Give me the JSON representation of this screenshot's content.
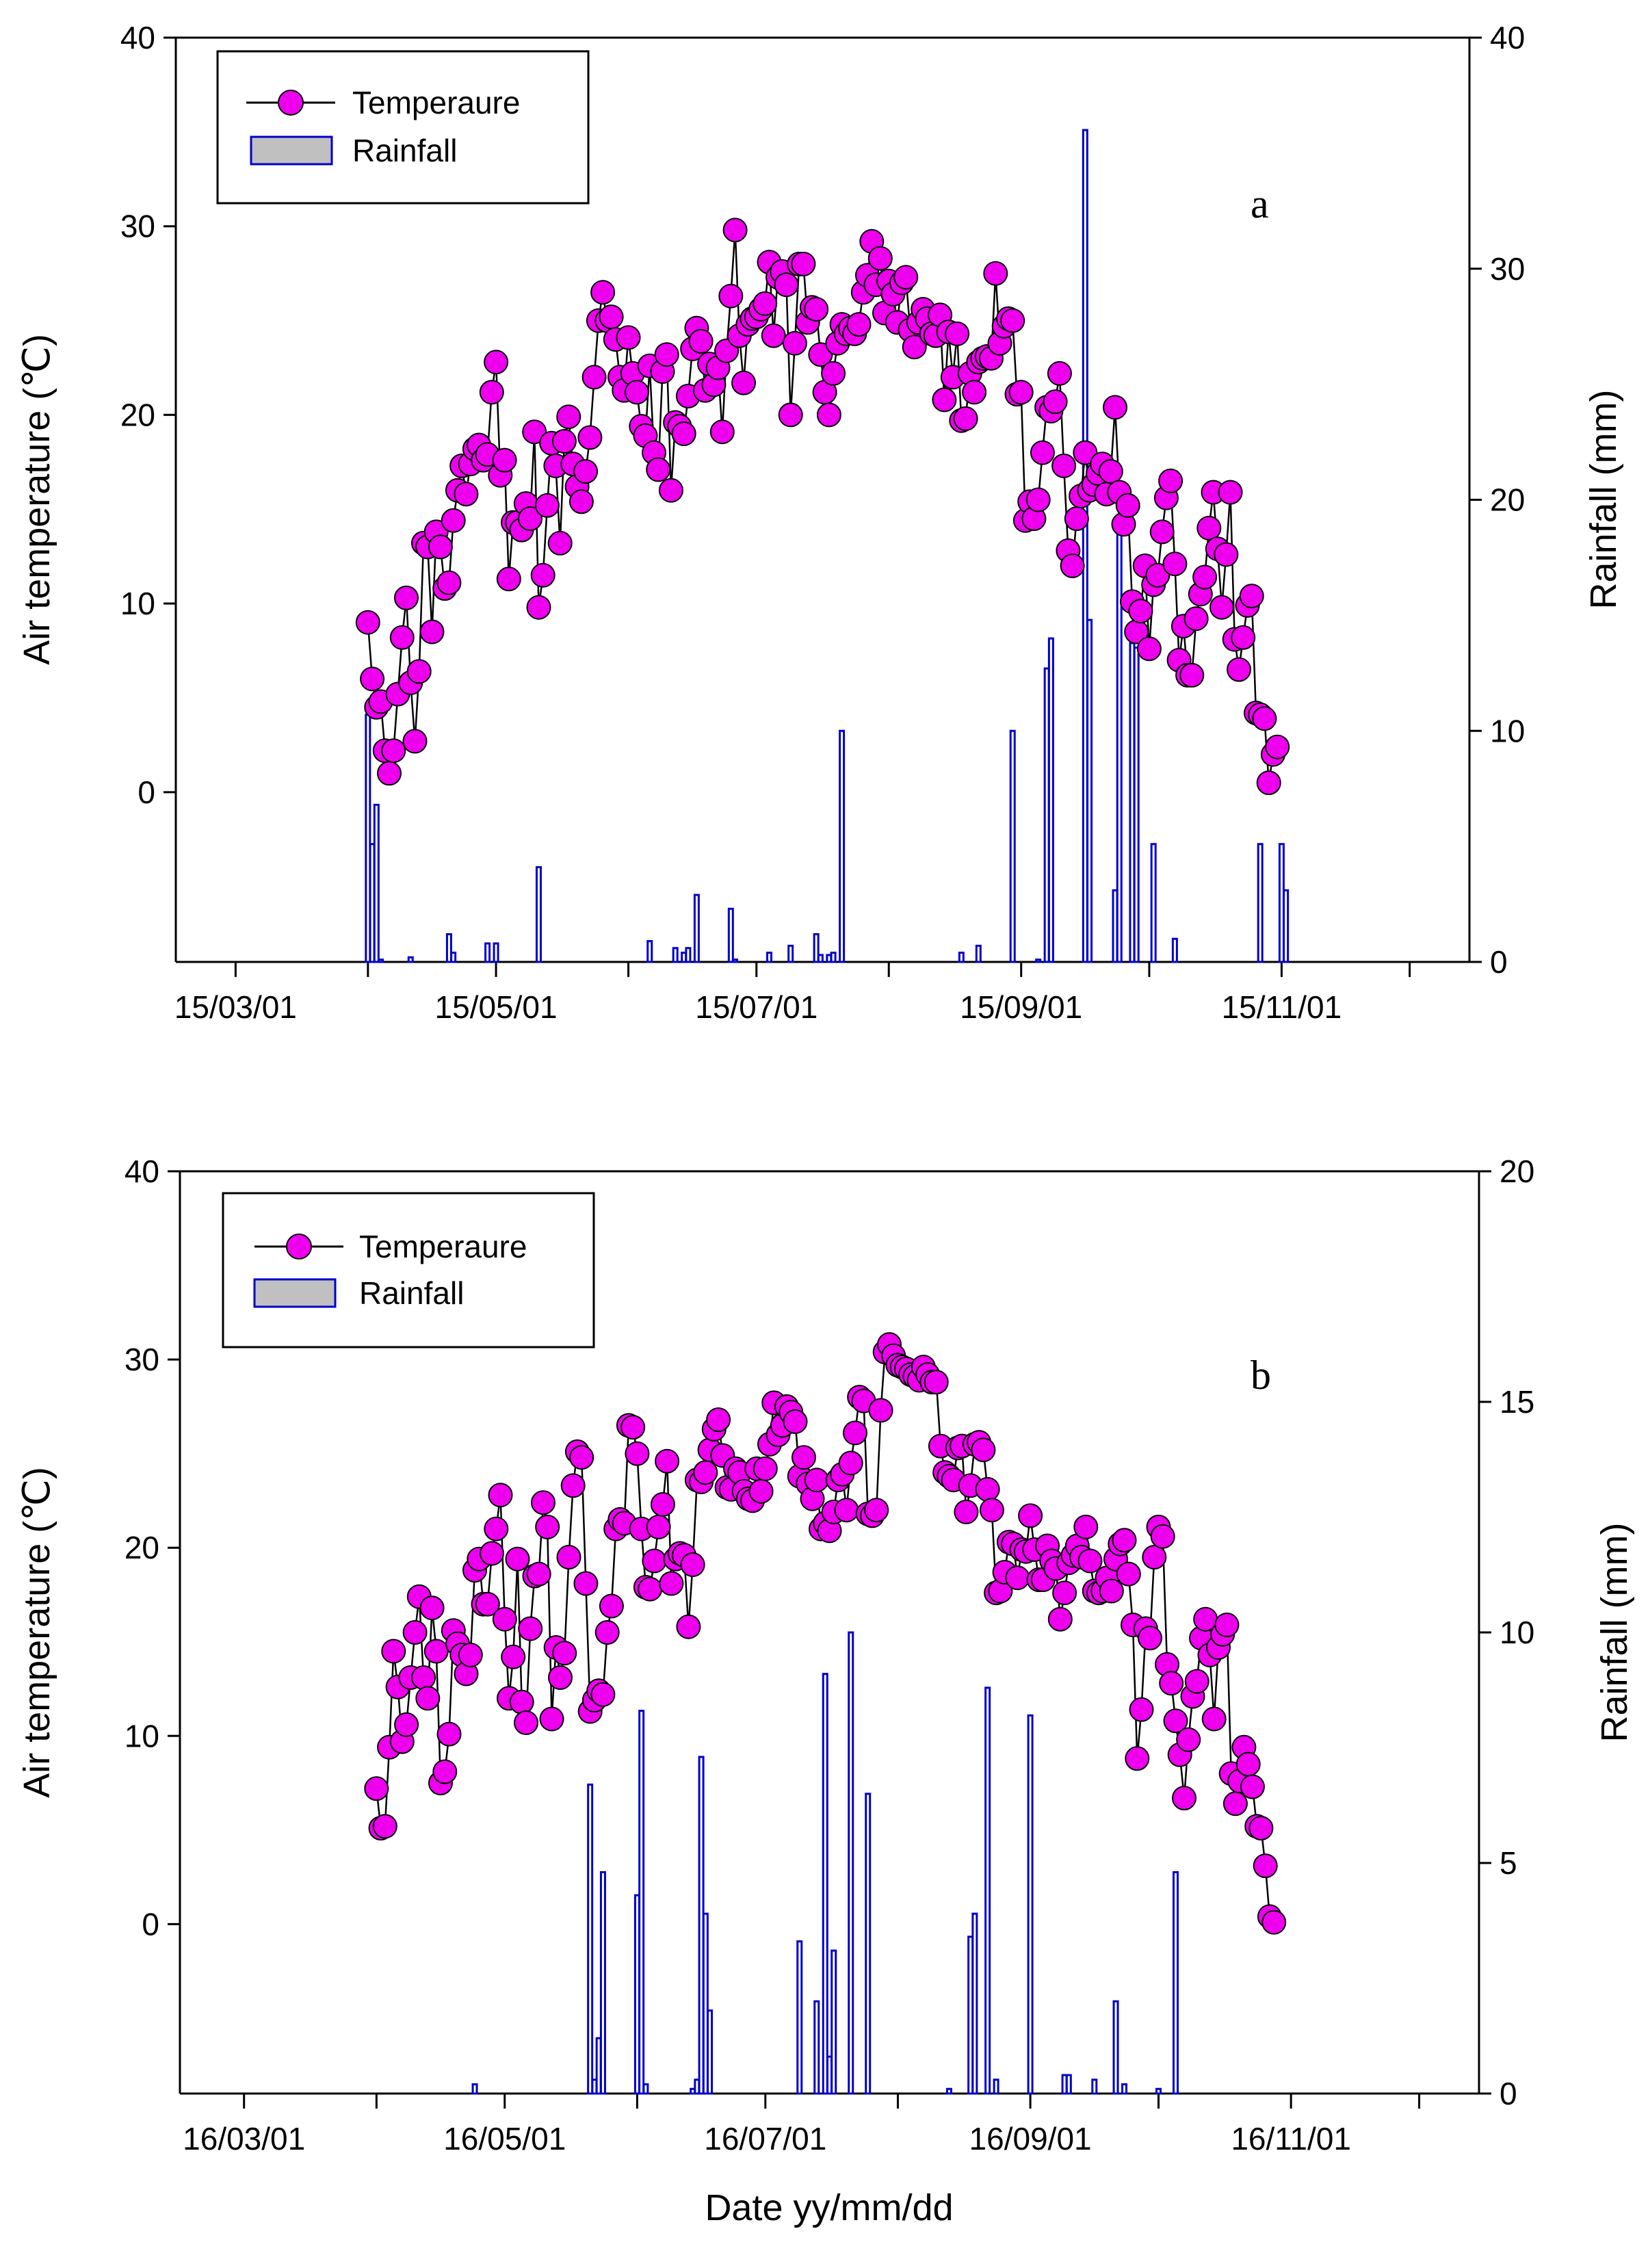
{
  "x_axis_title": "Date yy/mm/dd",
  "chart_data": [
    {
      "type": "line",
      "panel_label": "a",
      "year": 2015,
      "ylabel_left": "Air temperature (℃)",
      "ylabel_right": "Rainfall (mm)",
      "ylim_left": [
        -9,
        40
      ],
      "ylim_right": [
        0,
        40
      ],
      "yticks_left": [
        0,
        10,
        20,
        30,
        40
      ],
      "yticks_right": [
        0,
        10,
        20,
        30,
        40
      ],
      "xlim": [
        "15/02/15",
        "15/12/15"
      ],
      "xtick_labels": [
        "15/03/01",
        "15/05/01",
        "15/07/01",
        "15/09/01",
        "15/11/01"
      ],
      "legend": {
        "entries": [
          "Temperaure",
          "Rainfall"
        ],
        "placement": "top-left"
      },
      "series": [
        {
          "name": "Temperaure",
          "kind": "line-marker",
          "color": "#ee00ee",
          "start_date": "2015-04-01",
          "values": [
            9.0,
            6.0,
            4.5,
            4.8,
            2.2,
            1.0,
            2.2,
            5.2,
            8.2,
            10.3,
            5.8,
            2.7,
            6.4,
            13.2,
            13.0,
            8.5,
            13.8,
            13.0,
            10.8,
            11.1,
            14.4,
            16.0,
            17.3,
            15.8,
            17.4,
            18.2,
            18.4,
            17.6,
            17.9,
            21.2,
            22.8,
            16.8,
            17.6,
            11.3,
            14.3,
            14.3,
            13.9,
            15.3,
            14.5,
            19.1,
            9.8,
            11.5,
            15.2,
            18.5,
            17.3,
            13.2,
            18.6,
            19.9,
            17.4,
            16.2,
            15.4,
            17.0,
            18.8,
            22.0,
            25.0,
            26.5,
            25.0,
            25.2,
            24.0,
            22.0,
            21.3,
            24.1,
            22.2,
            21.2,
            19.4,
            18.9,
            22.6,
            18.0,
            17.1,
            22.3,
            23.2,
            16.0,
            19.6,
            19.4,
            19.0,
            21.0,
            23.5,
            24.6,
            23.9,
            21.3,
            22.7,
            21.6,
            22.5,
            19.1,
            23.4,
            26.3,
            29.8,
            24.2,
            21.7,
            24.8,
            25.1,
            25.2,
            25.6,
            25.9,
            28.1,
            24.2,
            27.3,
            27.6,
            26.9,
            20.0,
            23.8,
            28.0,
            28.0,
            24.9,
            25.7,
            25.6,
            23.2,
            21.2,
            20.0,
            22.2,
            23.8,
            24.8,
            24.3,
            24.6,
            24.3,
            24.8,
            26.5,
            27.4,
            29.2,
            26.9,
            28.3,
            25.4,
            27.1,
            26.4,
            24.9,
            27.0,
            27.3,
            24.5,
            23.6,
            24.9,
            25.6,
            25.1,
            24.3,
            24.2,
            25.3,
            20.8,
            24.4,
            22.0,
            24.3,
            19.7,
            19.8,
            22.2,
            21.2,
            22.8,
            23.0,
            23.1,
            23.0,
            27.5,
            23.8,
            24.7,
            25.1,
            25.0,
            21.1,
            21.2,
            14.4,
            15.4,
            14.5,
            15.5,
            18.0,
            20.4,
            20.2,
            20.7,
            22.2,
            17.3,
            12.8,
            12.0,
            14.5,
            15.7,
            18.0,
            16.0,
            16.3,
            16.9,
            17.4,
            15.8,
            17.0,
            20.4,
            15.9,
            14.2,
            15.2,
            10.1,
            8.5,
            9.6,
            12.0,
            7.6,
            11.0,
            11.5,
            13.8,
            15.6,
            16.5,
            12.1,
            7.0,
            8.8,
            6.2,
            6.2,
            9.2,
            10.5,
            11.4,
            14.0,
            15.9,
            12.9,
            9.8,
            12.6,
            15.9,
            8.1,
            6.5,
            8.2,
            9.9,
            10.4,
            4.2,
            4.1,
            3.9,
            0.5,
            2.0,
            2.4
          ]
        },
        {
          "name": "Rainfall",
          "kind": "bar",
          "color": "#0000cc",
          "points": [
            [
              "2015-04-01",
              10.7
            ],
            [
              "2015-04-02",
              5.1
            ],
            [
              "2015-04-03",
              6.8
            ],
            [
              "2015-04-04",
              0.1
            ],
            [
              "2015-04-11",
              0.2
            ],
            [
              "2015-04-20",
              1.2
            ],
            [
              "2015-04-21",
              0.4
            ],
            [
              "2015-04-29",
              0.8
            ],
            [
              "2015-05-01",
              0.8
            ],
            [
              "2015-05-11",
              4.1
            ],
            [
              "2015-06-06",
              0.9
            ],
            [
              "2015-06-12",
              0.6
            ],
            [
              "2015-06-14",
              0.4
            ],
            [
              "2015-06-15",
              0.6
            ],
            [
              "2015-06-17",
              2.9
            ],
            [
              "2015-06-25",
              2.3
            ],
            [
              "2015-06-26",
              0.1
            ],
            [
              "2015-07-04",
              0.4
            ],
            [
              "2015-07-09",
              0.7
            ],
            [
              "2015-07-15",
              1.2
            ],
            [
              "2015-07-16",
              0.3
            ],
            [
              "2015-07-18",
              0.3
            ],
            [
              "2015-07-19",
              0.4
            ],
            [
              "2015-07-21",
              10.0
            ],
            [
              "2015-08-18",
              0.4
            ],
            [
              "2015-08-22",
              0.7
            ],
            [
              "2015-08-30",
              10.0
            ],
            [
              "2015-09-05",
              0.1
            ],
            [
              "2015-09-07",
              12.7
            ],
            [
              "2015-09-08",
              14.0
            ],
            [
              "2015-09-16",
              36.0
            ],
            [
              "2015-09-17",
              14.8
            ],
            [
              "2015-09-23",
              3.1
            ],
            [
              "2015-09-24",
              19.0
            ],
            [
              "2015-09-27",
              13.8
            ],
            [
              "2015-09-28",
              13.6
            ],
            [
              "2015-10-02",
              5.1
            ],
            [
              "2015-10-07",
              1.0
            ],
            [
              "2015-10-27",
              5.1
            ],
            [
              "2015-11-01",
              5.1
            ],
            [
              "2015-11-02",
              3.1
            ]
          ]
        }
      ]
    },
    {
      "type": "line",
      "panel_label": "b",
      "year": 2016,
      "ylabel_left": "Air temperature (℃)",
      "ylabel_right": "Rainfall (mm)",
      "ylim_left": [
        -9,
        40
      ],
      "ylim_right": [
        0,
        20
      ],
      "yticks_left": [
        0,
        10,
        20,
        30,
        40
      ],
      "yticks_right": [
        0,
        5,
        10,
        15,
        20
      ],
      "xlim": [
        "16/02/15",
        "16/12/15"
      ],
      "xtick_labels": [
        "16/03/01",
        "16/05/01",
        "16/07/01",
        "16/09/01",
        "16/11/01"
      ],
      "legend": {
        "entries": [
          "Temperaure",
          "Rainfall"
        ],
        "placement": "top-left"
      },
      "series": [
        {
          "name": "Temperaure",
          "kind": "line-marker",
          "color": "#ee00ee",
          "start_date": "2016-04-01",
          "values": [
            7.2,
            5.1,
            5.2,
            9.4,
            14.5,
            12.6,
            9.7,
            10.6,
            13.1,
            15.5,
            17.4,
            13.1,
            12.0,
            16.8,
            14.5,
            7.5,
            8.1,
            10.1,
            15.6,
            14.9,
            14.3,
            13.3,
            14.3,
            18.8,
            19.4,
            17.0,
            17.0,
            19.7,
            21.0,
            22.8,
            16.2,
            12.0,
            14.2,
            19.4,
            11.8,
            10.7,
            15.7,
            18.5,
            18.6,
            22.4,
            21.1,
            10.9,
            14.7,
            13.1,
            14.4,
            19.5,
            23.3,
            25.1,
            24.8,
            18.1,
            11.3,
            11.9,
            12.4,
            12.2,
            15.5,
            16.9,
            21.0,
            21.5,
            21.3,
            26.5,
            26.4,
            25.0,
            21.0,
            17.9,
            17.8,
            19.3,
            21.1,
            22.3,
            24.6,
            18.1,
            19.4,
            19.7,
            19.6,
            15.8,
            19.1,
            23.6,
            23.5,
            24.0,
            25.2,
            26.3,
            26.8,
            24.9,
            23.2,
            23.1,
            24.2,
            24.0,
            23.0,
            22.6,
            22.5,
            24.2,
            23.0,
            24.2,
            25.5,
            27.7,
            26.0,
            26.5,
            27.5,
            27.2,
            26.7,
            23.8,
            24.8,
            23.4,
            22.6,
            23.6,
            21.0,
            21.3,
            20.9,
            21.9,
            23.6,
            23.9,
            22.0,
            24.5,
            26.1,
            28.0,
            27.8,
            21.8,
            21.7,
            22.0,
            27.3,
            30.4,
            30.8,
            30.2,
            29.7,
            29.6,
            29.5,
            29.2,
            29.1,
            28.9,
            29.6,
            29.2,
            28.8,
            28.8,
            25.4,
            24.0,
            23.8,
            23.6,
            25.3,
            25.4,
            21.9,
            23.3,
            25.5,
            25.6,
            25.2,
            23.1,
            22.0,
            17.6,
            17.7,
            18.7,
            20.3,
            20.2,
            18.4,
            19.9,
            19.8,
            21.7,
            19.9,
            18.3,
            18.3,
            20.1,
            19.3,
            18.9,
            16.2,
            17.6,
            19.2,
            19.6,
            20.1,
            19.5,
            21.1,
            19.3,
            17.7,
            17.6,
            17.7,
            18.4,
            17.7,
            19.4,
            20.2,
            20.4,
            18.6,
            15.9,
            8.8,
            11.4,
            15.7,
            15.2,
            19.5,
            21.1,
            20.6,
            13.8,
            12.8,
            10.8,
            9.0,
            6.7,
            9.8,
            12.1,
            12.9,
            15.2,
            16.2,
            14.3,
            10.9,
            14.7,
            15.4,
            15.9,
            8.0,
            6.4,
            7.6,
            9.4,
            8.5,
            7.3,
            5.2,
            5.1,
            3.1,
            0.4,
            0.1
          ]
        },
        {
          "name": "Rainfall",
          "kind": "bar",
          "color": "#0000cc",
          "points": [
            [
              "2016-04-24",
              0.2
            ],
            [
              "2016-05-21",
              6.7
            ],
            [
              "2016-05-22",
              0.3
            ],
            [
              "2016-05-23",
              1.2
            ],
            [
              "2016-05-24",
              4.8
            ],
            [
              "2016-06-01",
              4.3
            ],
            [
              "2016-06-02",
              8.3
            ],
            [
              "2016-06-03",
              0.2
            ],
            [
              "2016-06-14",
              0.1
            ],
            [
              "2016-06-15",
              0.3
            ],
            [
              "2016-06-16",
              7.3
            ],
            [
              "2016-06-17",
              3.9
            ],
            [
              "2016-06-18",
              1.8
            ],
            [
              "2016-07-09",
              3.3
            ],
            [
              "2016-07-13",
              2.0
            ],
            [
              "2016-07-15",
              9.1
            ],
            [
              "2016-07-16",
              0.8
            ],
            [
              "2016-07-17",
              3.1
            ],
            [
              "2016-07-21",
              10.0
            ],
            [
              "2016-07-25",
              6.5
            ],
            [
              "2016-08-13",
              0.1
            ],
            [
              "2016-08-18",
              3.4
            ],
            [
              "2016-08-19",
              3.9
            ],
            [
              "2016-08-22",
              8.8
            ],
            [
              "2016-08-24",
              0.3
            ],
            [
              "2016-09-01",
              8.2
            ],
            [
              "2016-09-09",
              0.4
            ],
            [
              "2016-09-10",
              0.4
            ],
            [
              "2016-09-16",
              0.3
            ],
            [
              "2016-09-21",
              2.0
            ],
            [
              "2016-09-23",
              0.2
            ],
            [
              "2016-10-01",
              0.1
            ],
            [
              "2016-10-05",
              4.8
            ]
          ]
        }
      ]
    }
  ]
}
